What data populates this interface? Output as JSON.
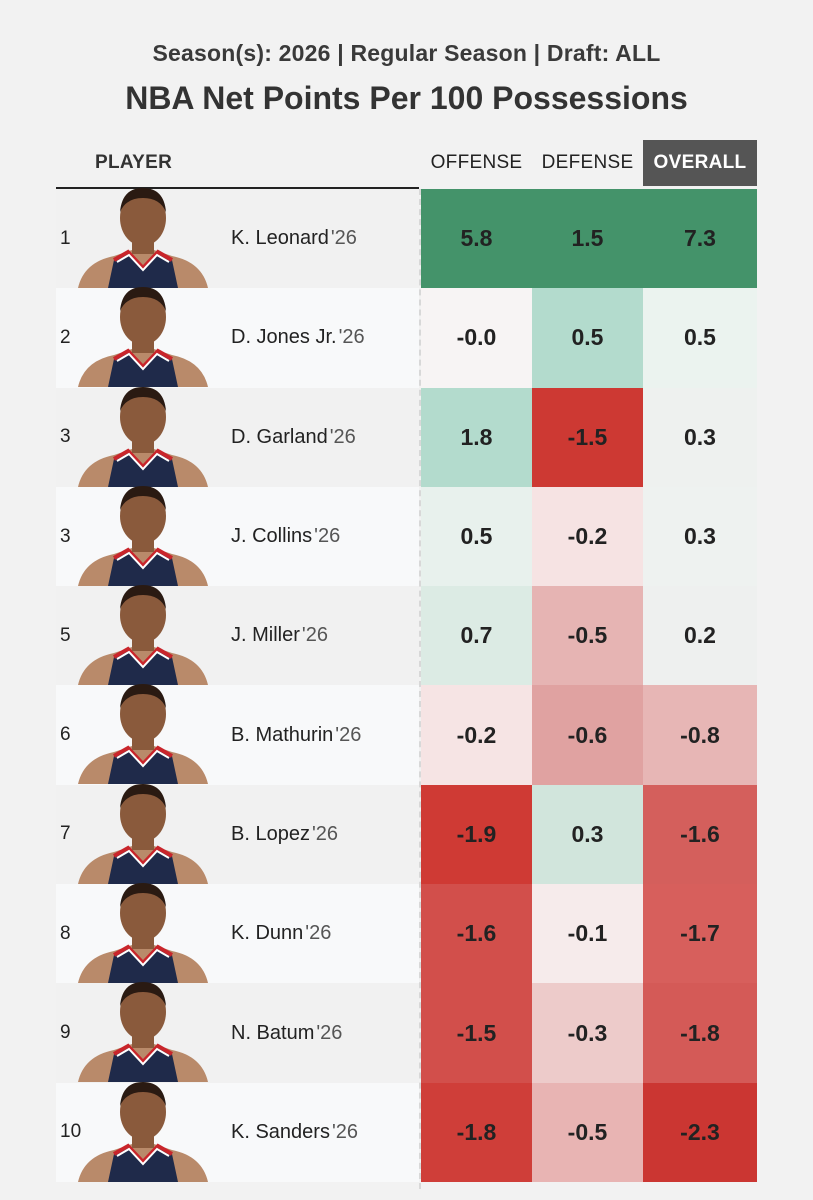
{
  "header": {
    "subtitle": "Season(s): 2026 | Regular Season | Draft: ALL",
    "title": "NBA Net Points Per 100 Possessions"
  },
  "columns": {
    "player": "PLAYER",
    "offense": "OFFENSE",
    "defense": "DEFENSE",
    "overall": "OVERALL"
  },
  "colors": {
    "strong_green": "#44936a",
    "light_green": "#b3dbcd",
    "neutral": "#f5f5f5",
    "strong_red": "#cf3a34"
  },
  "rows": [
    {
      "rank": "1",
      "name": "K. Leonard",
      "year": "'26",
      "offense": "5.8",
      "defense": "1.5",
      "overall": "7.3",
      "off_bg": "#44936a",
      "def_bg": "#44936a",
      "ovr_bg": "#44936a"
    },
    {
      "rank": "2",
      "name": "D. Jones Jr.",
      "year": "'26",
      "offense": "-0.0",
      "defense": "0.5",
      "overall": "0.5",
      "off_bg": "#f7f4f4",
      "def_bg": "#b3dbcd",
      "ovr_bg": "#ebf3ef"
    },
    {
      "rank": "3",
      "name": "D. Garland",
      "year": "'26",
      "offense": "1.8",
      "defense": "-1.5",
      "overall": "0.3",
      "off_bg": "#b3dbcd",
      "def_bg": "#cd3933",
      "ovr_bg": "#eef1ef"
    },
    {
      "rank": "3",
      "name": "J. Collins",
      "year": "'26",
      "offense": "0.5",
      "defense": "-0.2",
      "overall": "0.3",
      "off_bg": "#e8f1ed",
      "def_bg": "#f6e3e3",
      "ovr_bg": "#eef2f0"
    },
    {
      "rank": "5",
      "name": "J. Miller",
      "year": "'26",
      "offense": "0.7",
      "defense": "-0.5",
      "overall": "0.2",
      "off_bg": "#dcebe4",
      "def_bg": "#e6b4b3",
      "ovr_bg": "#eef0ef"
    },
    {
      "rank": "6",
      "name": "B. Mathurin",
      "year": "'26",
      "offense": "-0.2",
      "defense": "-0.6",
      "overall": "-0.8",
      "off_bg": "#f6e4e4",
      "def_bg": "#e0a2a1",
      "ovr_bg": "#e7b6b5"
    },
    {
      "rank": "7",
      "name": "B. Lopez",
      "year": "'26",
      "offense": "-1.9",
      "defense": "0.3",
      "overall": "-1.6",
      "off_bg": "#cf3a34",
      "def_bg": "#d1e5dc",
      "ovr_bg": "#d45f5c"
    },
    {
      "rank": "8",
      "name": "K. Dunn",
      "year": "'26",
      "offense": "-1.6",
      "defense": "-0.1",
      "overall": "-1.7",
      "off_bg": "#d24f4b",
      "def_bg": "#f6ebeb",
      "ovr_bg": "#d75f5c"
    },
    {
      "rank": "9",
      "name": "N. Batum",
      "year": "'26",
      "offense": "-1.5",
      "defense": "-0.3",
      "overall": "-1.8",
      "off_bg": "#d24f4b",
      "def_bg": "#edcbca",
      "ovr_bg": "#d45a57"
    },
    {
      "rank": "10",
      "name": "K. Sanders",
      "year": "'26",
      "offense": "-1.8",
      "defense": "-0.5",
      "overall": "-2.3",
      "off_bg": "#cf3e39",
      "def_bg": "#e8b4b3",
      "ovr_bg": "#cb3632"
    }
  ]
}
